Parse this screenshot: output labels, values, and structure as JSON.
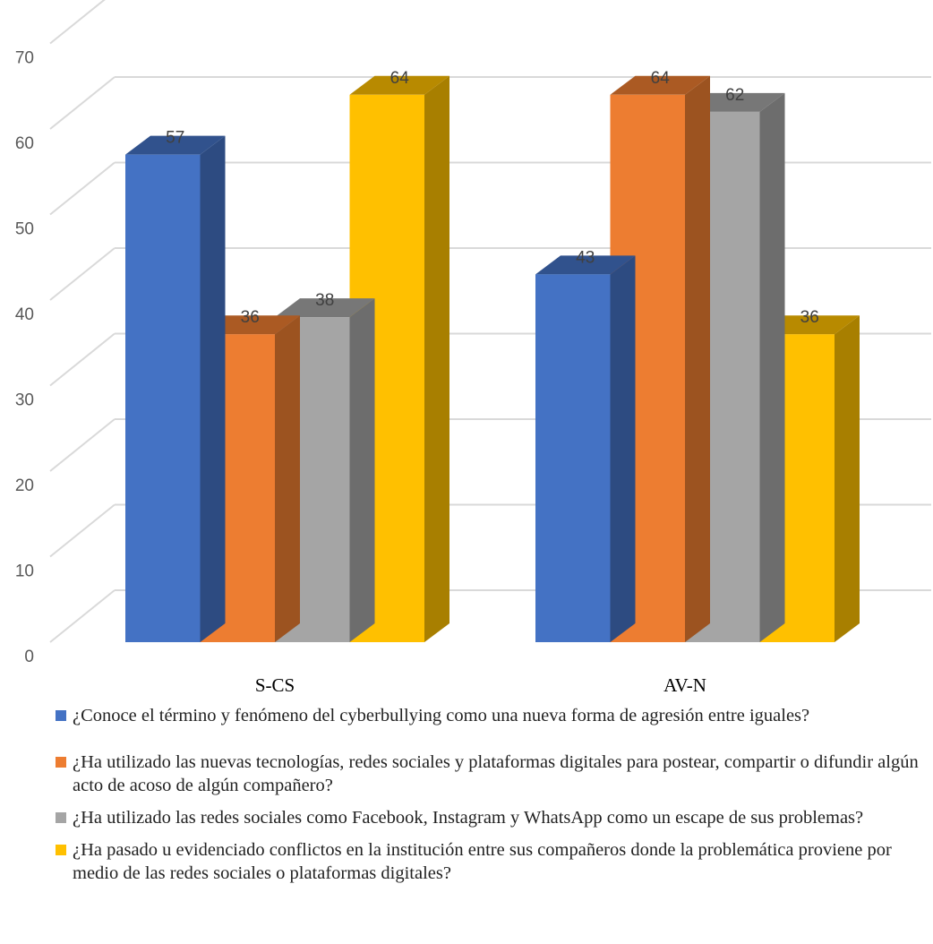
{
  "chart_data": {
    "type": "bar",
    "categories": [
      "S-CS",
      "AV-N"
    ],
    "series": [
      {
        "name": "¿Conoce el término y fenómeno del cyberbullying como una nueva forma de agresión entre iguales?",
        "values": [
          57,
          43
        ],
        "color": "#4472C4"
      },
      {
        "name": "¿Ha utilizado las nuevas tecnologías, redes sociales y plataformas digitales para postear, compartir o difundir algún acto de acoso de algún compañero?",
        "values": [
          36,
          64
        ],
        "color": "#ED7D31"
      },
      {
        "name": "¿Ha utilizado las redes sociales como Facebook, Instagram y WhatsApp como un escape de sus problemas?",
        "values": [
          38,
          62
        ],
        "color": "#A5A5A5"
      },
      {
        "name": "¿Ha pasado u evidenciado conflictos en la institución entre sus compañeros donde la problemática proviene por medio de las redes sociales o plataformas digitales?",
        "values": [
          64,
          36
        ],
        "color": "#FFC000"
      }
    ],
    "yticks": [
      "0",
      "10",
      "20",
      "30",
      "40",
      "50",
      "60",
      "70"
    ],
    "ylim": [
      0,
      70
    ],
    "grid": true,
    "legend_position": "bottom",
    "style": "3d-clustered-column"
  }
}
